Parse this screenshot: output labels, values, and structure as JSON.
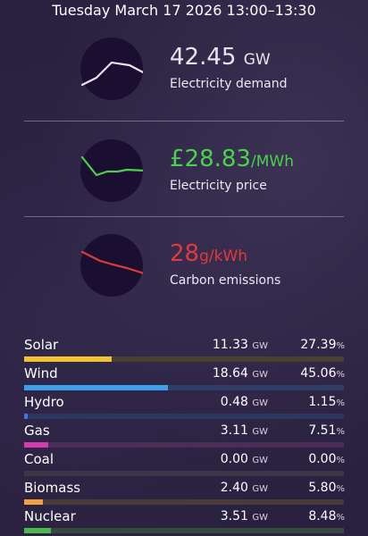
{
  "header": {
    "title": "Tuesday March 17 2026 13:00–13:30"
  },
  "metrics": [
    {
      "value": "42.45",
      "unit": "GW",
      "label": "Electricity demand",
      "color": "#e8e4ee",
      "icon": "demand-sparkline-icon"
    },
    {
      "value": "£28.83",
      "unit": "/MWh",
      "label": "Electricity price",
      "color": "#4ad24a",
      "icon": "price-sparkline-icon"
    },
    {
      "value": "28",
      "unit": "g/kWh",
      "label": "Carbon emissions",
      "color": "#e03a3a",
      "icon": "emissions-sparkline-icon"
    }
  ],
  "sources": [
    {
      "name": "Solar",
      "gw": "11.33",
      "gw_unit": "GW",
      "pct": "27.39",
      "pct_unit": "%",
      "fraction": 0.2739,
      "color": "#f2c230",
      "track": "#4a4030"
    },
    {
      "name": "Wind",
      "gw": "18.64",
      "gw_unit": "GW",
      "pct": "45.06",
      "pct_unit": "%",
      "fraction": 0.4506,
      "color": "#3da0ea",
      "track": "#2f3e66"
    },
    {
      "name": "Hydro",
      "gw": "0.48",
      "gw_unit": "GW",
      "pct": "1.15",
      "pct_unit": "%",
      "fraction": 0.0115,
      "color": "#3a7ad8",
      "track": "#2c3760"
    },
    {
      "name": "Gas",
      "gw": "3.11",
      "gw_unit": "GW",
      "pct": "7.51",
      "pct_unit": "%",
      "fraction": 0.0751,
      "color": "#d63ab0",
      "track": "#4a2e58"
    },
    {
      "name": "Coal",
      "gw": "0.00",
      "gw_unit": "GW",
      "pct": "0.00",
      "pct_unit": "%",
      "fraction": 0.0,
      "color": "#8a8a8a",
      "track": "#3b3648"
    },
    {
      "name": "Biomass",
      "gw": "2.40",
      "gw_unit": "GW",
      "pct": "5.80",
      "pct_unit": "%",
      "fraction": 0.058,
      "color": "#f0a040",
      "track": "#4c3a3a"
    },
    {
      "name": "Nuclear",
      "gw": "3.51",
      "gw_unit": "GW",
      "pct": "8.48",
      "pct_unit": "%",
      "fraction": 0.0848,
      "color": "#4ab84a",
      "track": "#344a3c"
    }
  ]
}
